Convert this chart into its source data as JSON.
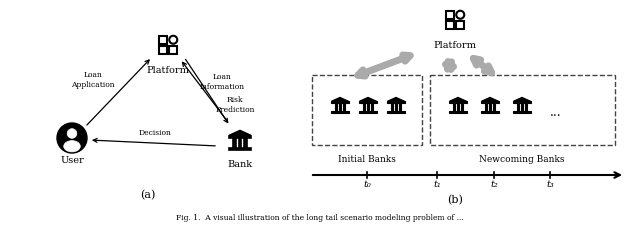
{
  "fig_width": 6.4,
  "fig_height": 2.25,
  "bg_color": "#ffffff",
  "label_a": "(a)",
  "label_b": "(b)",
  "platform_label": "Platform",
  "bank_label": "Bank",
  "user_label": "User",
  "loan_app_label": "Loan\nApplication",
  "loan_info_label": "Loan\nInformation",
  "risk_pred_label": "Risk\nPrediction",
  "decision_label": "Decision",
  "initial_banks_label": "Initial Banks",
  "newcoming_banks_label": "Newcoming Banks",
  "platform_b_label": "Platform",
  "t0_label": "t₀",
  "t1_label": "t₁",
  "t2_label": "t₂",
  "t3_label": "t₃",
  "arrow_color": "#aaaaaa",
  "text_color": "#000000",
  "dashed_color": "#555555",
  "caption": "Fig. 1.  A visual illustration of the long tail scenario modeling problem of ..."
}
